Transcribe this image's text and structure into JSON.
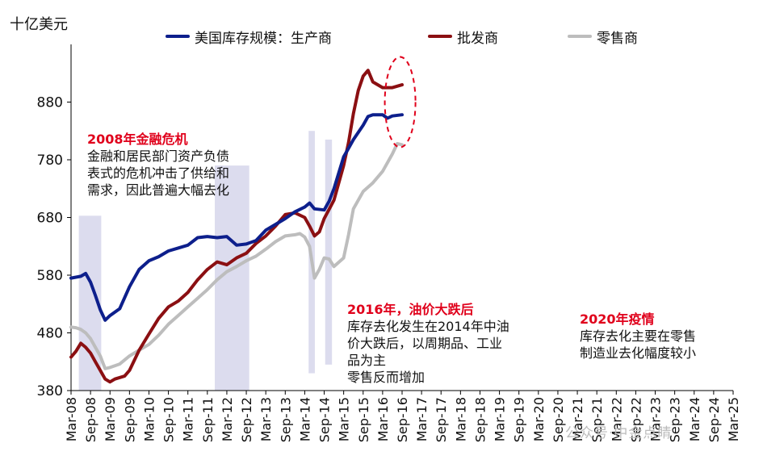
{
  "chart_data": {
    "type": "line",
    "unit": "十亿美元",
    "ylim": [
      380,
      980
    ],
    "yticks": [
      380,
      480,
      580,
      680,
      780,
      880
    ],
    "x_start": "Mar-08",
    "x_end": "Mar-25",
    "xticks": [
      "Mar-08",
      "Sep-08",
      "Mar-09",
      "Sep-09",
      "Mar-10",
      "Sep-10",
      "Mar-11",
      "Sep-11",
      "Mar-12",
      "Sep-12",
      "Mar-13",
      "Sep-13",
      "Mar-14",
      "Sep-14",
      "Mar-15",
      "Sep-15",
      "Mar-16",
      "Sep-16",
      "Mar-17",
      "Sep-17",
      "Mar-18",
      "Sep-18",
      "Mar-19",
      "Sep-19",
      "Mar-20",
      "Sep-20",
      "Mar-21",
      "Sep-21",
      "Mar-22",
      "Sep-22",
      "Mar-23",
      "Sep-23",
      "Mar-24",
      "Sep-24",
      "Mar-25"
    ],
    "series": [
      {
        "name": "美国库存规模：生产商",
        "color": "#0d1f8c",
        "points": [
          [
            0,
            575
          ],
          [
            0.5,
            578
          ],
          [
            0.75,
            583
          ],
          [
            1,
            568
          ],
          [
            1.25,
            545
          ],
          [
            1.5,
            520
          ],
          [
            1.75,
            502
          ],
          [
            2,
            510
          ],
          [
            2.5,
            522
          ],
          [
            3,
            560
          ],
          [
            3.5,
            590
          ],
          [
            4,
            605
          ],
          [
            4.5,
            612
          ],
          [
            5,
            622
          ],
          [
            5.5,
            627
          ],
          [
            6,
            632
          ],
          [
            6.5,
            645
          ],
          [
            7,
            647
          ],
          [
            7.5,
            645
          ],
          [
            8,
            647
          ],
          [
            8.5,
            632
          ],
          [
            9,
            634
          ],
          [
            9.5,
            640
          ],
          [
            10,
            658
          ],
          [
            10.5,
            668
          ],
          [
            11,
            678
          ],
          [
            11.5,
            690
          ],
          [
            12,
            698
          ],
          [
            12.25,
            705
          ],
          [
            12.5,
            695
          ],
          [
            13,
            693
          ],
          [
            13.25,
            708
          ],
          [
            13.5,
            730
          ],
          [
            14,
            785
          ],
          [
            14.25,
            800
          ],
          [
            14.5,
            815
          ],
          [
            15,
            840
          ],
          [
            15.25,
            855
          ],
          [
            15.5,
            858
          ],
          [
            16,
            858
          ],
          [
            16.25,
            852
          ],
          [
            16.5,
            856
          ],
          [
            17,
            858
          ]
        ]
      },
      {
        "name": "批发商",
        "color": "#8b0f12",
        "points": [
          [
            0,
            438
          ],
          [
            0.25,
            448
          ],
          [
            0.5,
            462
          ],
          [
            0.75,
            455
          ],
          [
            1,
            445
          ],
          [
            1.25,
            430
          ],
          [
            1.5,
            415
          ],
          [
            1.75,
            400
          ],
          [
            2,
            395
          ],
          [
            2.25,
            400
          ],
          [
            2.75,
            405
          ],
          [
            3,
            415
          ],
          [
            3.5,
            450
          ],
          [
            4,
            478
          ],
          [
            4.5,
            505
          ],
          [
            5,
            525
          ],
          [
            5.5,
            535
          ],
          [
            6,
            550
          ],
          [
            6.5,
            572
          ],
          [
            7,
            590
          ],
          [
            7.5,
            603
          ],
          [
            8,
            598
          ],
          [
            8.5,
            610
          ],
          [
            9,
            618
          ],
          [
            9.5,
            635
          ],
          [
            10,
            648
          ],
          [
            10.5,
            665
          ],
          [
            11,
            685
          ],
          [
            11.5,
            688
          ],
          [
            12,
            680
          ],
          [
            12.25,
            665
          ],
          [
            12.5,
            648
          ],
          [
            12.75,
            655
          ],
          [
            13,
            678
          ],
          [
            13.5,
            710
          ],
          [
            14,
            770
          ],
          [
            14.25,
            810
          ],
          [
            14.5,
            860
          ],
          [
            14.75,
            900
          ],
          [
            15,
            925
          ],
          [
            15.25,
            935
          ],
          [
            15.5,
            915
          ],
          [
            16,
            905
          ],
          [
            16.5,
            905
          ],
          [
            17,
            910
          ]
        ]
      },
      {
        "name": "零售商",
        "color": "#bdbdbd",
        "points": [
          [
            0,
            490
          ],
          [
            0.25,
            489
          ],
          [
            0.5,
            486
          ],
          [
            0.75,
            480
          ],
          [
            1,
            470
          ],
          [
            1.25,
            455
          ],
          [
            1.5,
            440
          ],
          [
            1.75,
            418
          ],
          [
            2,
            420
          ],
          [
            2.5,
            426
          ],
          [
            3,
            440
          ],
          [
            3.5,
            450
          ],
          [
            4,
            460
          ],
          [
            4.5,
            476
          ],
          [
            5,
            495
          ],
          [
            5.5,
            510
          ],
          [
            6,
            525
          ],
          [
            6.5,
            540
          ],
          [
            7,
            555
          ],
          [
            7.5,
            572
          ],
          [
            8,
            586
          ],
          [
            8.5,
            595
          ],
          [
            9,
            605
          ],
          [
            9.5,
            613
          ],
          [
            10,
            625
          ],
          [
            10.5,
            638
          ],
          [
            11,
            648
          ],
          [
            11.5,
            650
          ],
          [
            11.75,
            652
          ],
          [
            12,
            646
          ],
          [
            12.25,
            630
          ],
          [
            12.5,
            575
          ],
          [
            12.75,
            590
          ],
          [
            13,
            610
          ],
          [
            13.25,
            608
          ],
          [
            13.5,
            595
          ],
          [
            14,
            610
          ],
          [
            14.25,
            650
          ],
          [
            14.5,
            695
          ],
          [
            15,
            725
          ],
          [
            15.5,
            740
          ],
          [
            16,
            760
          ],
          [
            16.5,
            790
          ],
          [
            16.75,
            808
          ],
          [
            17,
            806
          ]
        ]
      }
    ],
    "shaded_periods": [
      {
        "label": "2008年金融危机",
        "x0": 0.4,
        "x1": 1.55
      },
      {
        "label": "2016年，油价大跌后",
        "x0": 7.38,
        "x1": 9.15
      },
      {
        "label": "2020年疫情-a",
        "x0": 12.2,
        "x1": 12.52
      },
      {
        "label": "2020年疫情-b",
        "x0": 13.05,
        "x1": 13.4
      }
    ],
    "annotations": [
      {
        "title": "2008年金融危机",
        "lines": [
          "金融和居民部门资产负债",
          "表式的危机冲击了供给和",
          "需求，因此普遍大幅去化"
        ]
      },
      {
        "title": "2016年，油价大跌后",
        "lines": [
          "库存去化发生在2014年中油",
          "价大跌后，以周期品、工业",
          "品为主",
          "零售反而增加"
        ]
      },
      {
        "title": "2020年疫情",
        "lines": [
          "库存去化主要在零售",
          "制造业去化幅度较小"
        ]
      }
    ],
    "watermark": "公众号·中金点睛"
  }
}
